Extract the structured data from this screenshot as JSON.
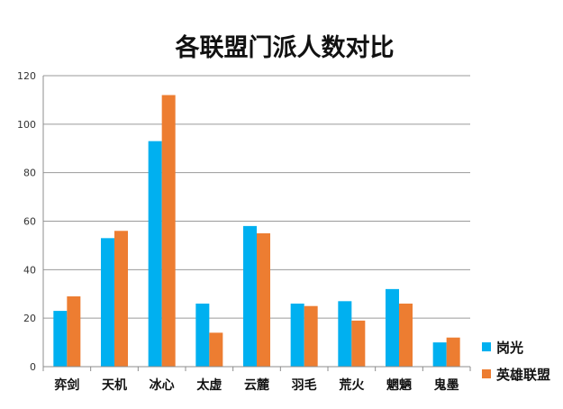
{
  "chart_data": {
    "type": "bar",
    "title": "各联盟门派人数对比",
    "categories": [
      "弈剑",
      "天机",
      "冰心",
      "太虚",
      "云麓",
      "羽毛",
      "荒火",
      "魍魉",
      "鬼墨"
    ],
    "series": [
      {
        "name": "岗光",
        "color": "#00B0F0",
        "values": [
          23,
          53,
          93,
          26,
          58,
          26,
          27,
          32,
          10
        ]
      },
      {
        "name": "英雄联盟",
        "color": "#ED7D31",
        "values": [
          29,
          56,
          112,
          14,
          55,
          25,
          19,
          26,
          12
        ]
      }
    ],
    "ylim": [
      0,
      120
    ],
    "yticks": [
      0,
      20,
      40,
      60,
      80,
      100,
      120
    ],
    "grid": true,
    "legend_position": "right"
  }
}
